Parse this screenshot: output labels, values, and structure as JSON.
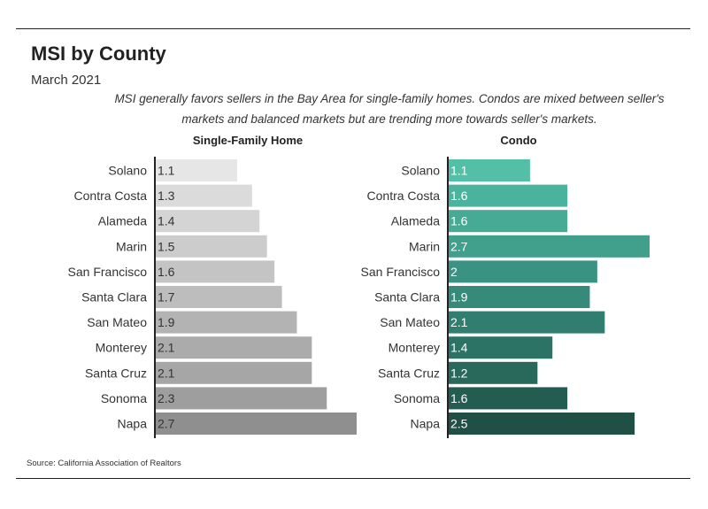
{
  "title": "MSI by County",
  "subtitle": "March 2021",
  "note": "MSI generally favors sellers in the Bay Area for single-family homes. Condos are mixed between seller's markets and balanced markets but are trending more towards seller's markets.",
  "source": "Source:  California Association of Realtors",
  "chart_data": [
    {
      "type": "bar",
      "orientation": "horizontal",
      "title": "Single-Family Home",
      "categories": [
        "Solano",
        "Contra Costa",
        "Alameda",
        "Marin",
        "San Francisco",
        "Santa Clara",
        "San Mateo",
        "Monterey",
        "Santa Cruz",
        "Sonoma",
        "Napa"
      ],
      "values": [
        1.1,
        1.3,
        1.4,
        1.5,
        1.6,
        1.7,
        1.9,
        2.1,
        2.1,
        2.3,
        2.7
      ],
      "value_labels": [
        "1.1",
        "1.3",
        "1.4",
        "1.5",
        "1.6",
        "1.7",
        "1.9",
        "2.1",
        "2.1",
        "2.3",
        "2.7"
      ],
      "colors": [
        "#e6e6e6",
        "#dbdbdb",
        "#d4d4d4",
        "#cccccc",
        "#c4c4c4",
        "#bdbdbd",
        "#b3b3b3",
        "#ababab",
        "#a6a6a6",
        "#9e9e9e",
        "#8f8f8f"
      ],
      "label_color": "#333333",
      "xlim": [
        0,
        2.7
      ]
    },
    {
      "type": "bar",
      "orientation": "horizontal",
      "title": "Condo",
      "categories": [
        "Solano",
        "Contra Costa",
        "Alameda",
        "Marin",
        "San Francisco",
        "Santa Clara",
        "San Mateo",
        "Monterey",
        "Santa Cruz",
        "Sonoma",
        "Napa"
      ],
      "values": [
        1.1,
        1.6,
        1.6,
        2.7,
        2,
        1.9,
        2.1,
        1.4,
        1.2,
        1.6,
        2.5
      ],
      "value_labels": [
        "1.1",
        "1.6",
        "1.6",
        "2.7",
        "2",
        "1.9",
        "2.1",
        "1.4",
        "1.2",
        "1.6",
        "2.5"
      ],
      "colors": [
        "#52bfa6",
        "#4ab39d",
        "#46aa94",
        "#41a08c",
        "#3a9282",
        "#368a7a",
        "#317e70",
        "#2c7265",
        "#28695c",
        "#235d52",
        "#1f4f45"
      ],
      "label_color": "#ffffff",
      "xlim": [
        0,
        2.7
      ]
    }
  ]
}
